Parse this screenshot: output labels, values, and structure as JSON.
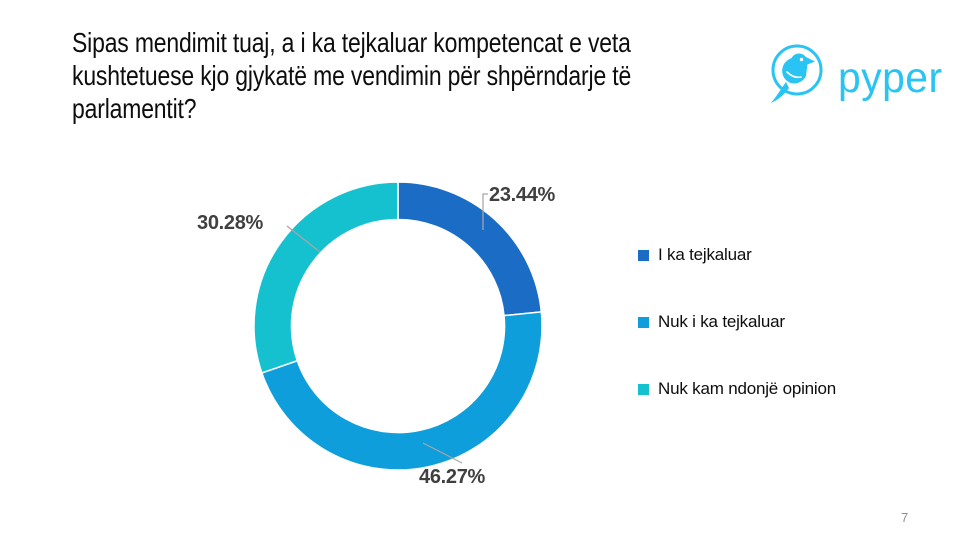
{
  "page": {
    "number": "7",
    "background": "#ffffff"
  },
  "header": {
    "title_lines": [
      "Sipas mendimit tuaj, a i ka tejkaluar kompetencat e veta",
      "kushtetuese kjo gjykatë me vendimin për shpërndarje të",
      "parlamentit?"
    ],
    "logo": {
      "text": "pyper",
      "color": "#29C4F3",
      "icon": "pyper-bird-in-circle"
    }
  },
  "chart_data": {
    "type": "pie",
    "variant": "donut",
    "title": "Sipas mendimit tuaj, a i ka tejkaluar kompetencat e veta kushtetuese kjo gjykatë me vendimin për shpërndarje të parlamentit?",
    "categories": [
      "I ka tejkaluar",
      "Nuk i ka tejkaluar",
      "Nuk kam ndonjë opinion"
    ],
    "values": [
      23.44,
      46.27,
      30.28
    ],
    "labels": [
      "23.44%",
      "46.27%",
      "30.28%"
    ],
    "colors": [
      "#1B6CC4",
      "#0E9EDB",
      "#15C1CE"
    ],
    "start_angle_deg": 0,
    "direction": "clockwise",
    "hole_ratio": 0.74,
    "legend_position": "right",
    "data_label_color": "#404040",
    "leader_line_color": "#A6A6A6",
    "grid": false
  }
}
